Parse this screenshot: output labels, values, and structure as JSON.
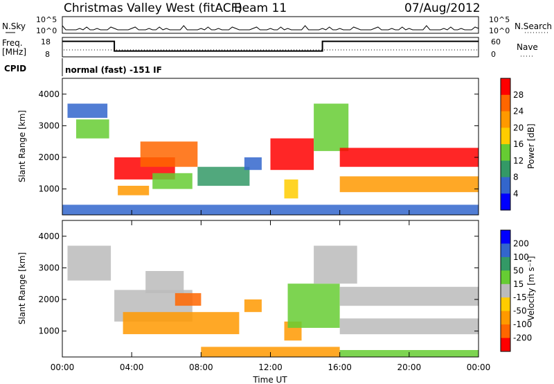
{
  "header": {
    "station": "Christmas Valley West (fitACF)",
    "beam": "Beam 11",
    "date": "07/Aug/2012"
  },
  "strip": {
    "nsky_label": "N.Sky",
    "nsearch_label": "N.Search",
    "freq_label": "Freq.",
    "freq_unit": "[MHz]",
    "nave_label": "Nave",
    "cpid_label": "CPID",
    "cpid_text": "normal (fast) -151 IF",
    "noise_ticks": [
      "10^5",
      "10^0"
    ],
    "freq_ticks": [
      "18",
      "8"
    ],
    "nave_ticks": [
      "60",
      "0"
    ]
  },
  "chart_data": [
    {
      "type": "heatmap",
      "name": "power",
      "ylabel": "Slant Range [km]",
      "yticks": [
        "4000",
        "3000",
        "2000",
        "1000"
      ],
      "ylim": [
        180,
        4500
      ],
      "colorbar_label": "Power [dB]",
      "colorbar_ticks": [
        "28",
        "24",
        "20",
        "16",
        "12",
        "8",
        "4"
      ],
      "colorbar_colors": [
        "#ff0000",
        "#ff6600",
        "#ff9900",
        "#ffcc00",
        "#66cc33",
        "#339966",
        "#3366cc",
        "#0000ff"
      ],
      "patches": [
        {
          "t": [
            0.3,
            2.6
          ],
          "r": [
            3250,
            3700
          ],
          "c": "#3366cc"
        },
        {
          "t": [
            0.8,
            2.7
          ],
          "r": [
            2600,
            3200
          ],
          "c": "#66cc33"
        },
        {
          "t": [
            3.0,
            6.5
          ],
          "r": [
            1300,
            2000
          ],
          "c": "#ff0000"
        },
        {
          "t": [
            4.5,
            7.8
          ],
          "r": [
            1700,
            2500
          ],
          "c": "#ff6600"
        },
        {
          "t": [
            5.2,
            7.5
          ],
          "r": [
            1000,
            1500
          ],
          "c": "#66cc33"
        },
        {
          "t": [
            7.8,
            10.8
          ],
          "r": [
            1100,
            1700
          ],
          "c": "#339966"
        },
        {
          "t": [
            3.2,
            5.0
          ],
          "r": [
            800,
            1100
          ],
          "c": "#ff9900"
        },
        {
          "t": [
            10.5,
            11.5
          ],
          "r": [
            1600,
            2000
          ],
          "c": "#3366cc"
        },
        {
          "t": [
            12.0,
            14.5
          ],
          "r": [
            1600,
            2600
          ],
          "c": "#ff0000"
        },
        {
          "t": [
            12.8,
            13.6
          ],
          "r": [
            700,
            1300
          ],
          "c": "#ffcc00"
        },
        {
          "t": [
            14.5,
            16.5
          ],
          "r": [
            2200,
            3700
          ],
          "c": "#66cc33"
        },
        {
          "t": [
            16.0,
            24.0
          ],
          "r": [
            1700,
            2300
          ],
          "c": "#ff0000"
        },
        {
          "t": [
            16.0,
            24.0
          ],
          "r": [
            900,
            1400
          ],
          "c": "#ff9900"
        },
        {
          "t": [
            0.0,
            24.0
          ],
          "r": [
            180,
            500
          ],
          "c": "#3366cc"
        }
      ]
    },
    {
      "type": "heatmap",
      "name": "velocity",
      "ylabel": "Slant Range [km]",
      "yticks": [
        "4000",
        "3000",
        "2000",
        "1000"
      ],
      "ylim": [
        180,
        4500
      ],
      "colorbar_label": "Velocity [m s⁻¹]",
      "colorbar_ticks": [
        "200",
        "100",
        "50",
        "15",
        "-15",
        "-50",
        "-100",
        "-200"
      ],
      "colorbar_colors": [
        "#0000ff",
        "#3366cc",
        "#339966",
        "#66cc33",
        "#bbbbbb",
        "#ffcc00",
        "#ff9900",
        "#ff6600",
        "#ff0000"
      ],
      "patches": [
        {
          "t": [
            0.3,
            2.8
          ],
          "r": [
            2600,
            3700
          ],
          "c": "#bbbbbb"
        },
        {
          "t": [
            3.0,
            7.5
          ],
          "r": [
            1300,
            2300
          ],
          "c": "#bbbbbb"
        },
        {
          "t": [
            4.8,
            7.0
          ],
          "r": [
            2200,
            2900
          ],
          "c": "#bbbbbb"
        },
        {
          "t": [
            6.5,
            8.0
          ],
          "r": [
            1800,
            2200
          ],
          "c": "#ff6600"
        },
        {
          "t": [
            3.5,
            10.2
          ],
          "r": [
            900,
            1600
          ],
          "c": "#ff9900"
        },
        {
          "t": [
            10.5,
            11.5
          ],
          "r": [
            1600,
            2000
          ],
          "c": "#ff9900"
        },
        {
          "t": [
            12.8,
            13.8
          ],
          "r": [
            700,
            1300
          ],
          "c": "#ff9900"
        },
        {
          "t": [
            13.0,
            16.0
          ],
          "r": [
            1100,
            2500
          ],
          "c": "#66cc33"
        },
        {
          "t": [
            16.0,
            24.0
          ],
          "r": [
            1800,
            2400
          ],
          "c": "#bbbbbb"
        },
        {
          "t": [
            16.0,
            24.0
          ],
          "r": [
            900,
            1400
          ],
          "c": "#bbbbbb"
        },
        {
          "t": [
            14.5,
            17.0
          ],
          "r": [
            2500,
            3700
          ],
          "c": "#bbbbbb"
        },
        {
          "t": [
            8.0,
            16.0
          ],
          "r": [
            180,
            500
          ],
          "c": "#ff9900"
        },
        {
          "t": [
            16.0,
            24.0
          ],
          "r": [
            180,
            400
          ],
          "c": "#66cc33"
        }
      ]
    }
  ],
  "xaxis": {
    "label": "Time UT",
    "ticks": [
      "00:00",
      "04:00",
      "08:00",
      "12:00",
      "16:00",
      "20:00",
      "00:00"
    ]
  },
  "frequency_trace": [
    {
      "t": 0.0,
      "mhz": 16
    },
    {
      "t": 3.0,
      "mhz": 16
    },
    {
      "t": 3.0,
      "mhz": 11
    },
    {
      "t": 15.0,
      "mhz": 11
    },
    {
      "t": 15.0,
      "mhz": 16
    },
    {
      "t": 24.0,
      "mhz": 16
    }
  ]
}
